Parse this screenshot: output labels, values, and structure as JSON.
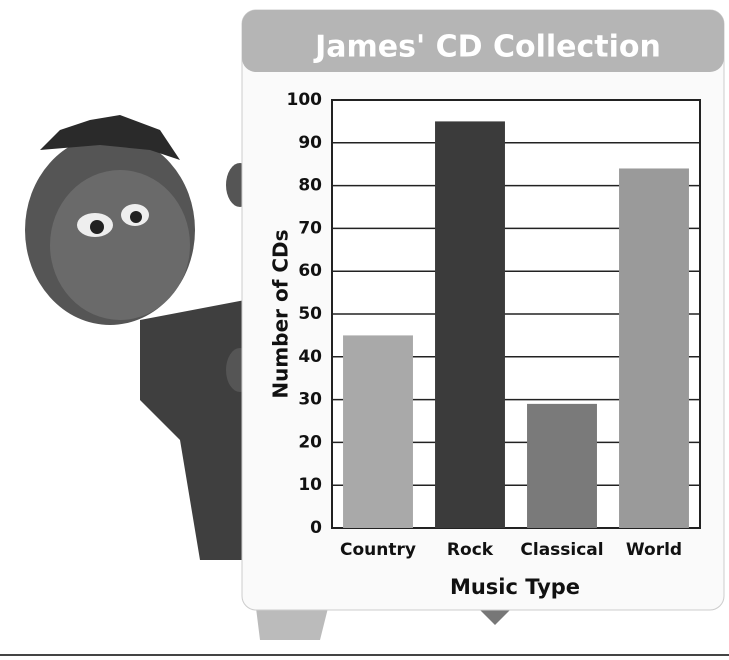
{
  "chart_data": {
    "type": "bar",
    "title": "James' CD Collection",
    "x_label": "Music Type",
    "y_label": "Number of CDs",
    "categories": [
      "Country",
      "Rock",
      "Classical",
      "World"
    ],
    "values": [
      45,
      95,
      29,
      84
    ],
    "colors": [
      "#a9a9a9",
      "#3b3b3b",
      "#7a7a7a",
      "#9a9a9a"
    ],
    "ylim": [
      0,
      100
    ],
    "yticks": [
      0,
      10,
      20,
      30,
      40,
      50,
      60,
      70,
      80,
      90,
      100
    ],
    "grid": true
  }
}
